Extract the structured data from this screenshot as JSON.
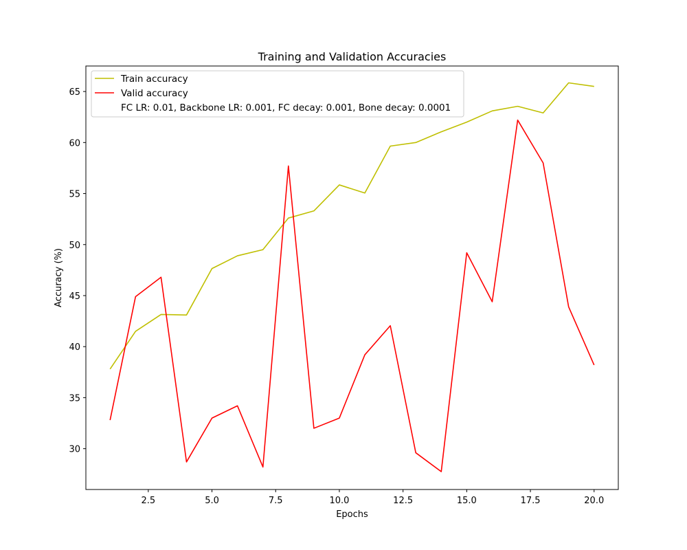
{
  "chart_data": {
    "type": "line",
    "title": "Training and Validation Accuracies",
    "xlabel": "Epochs",
    "ylabel": "Accuracy (%)",
    "xlim": [
      0.05,
      20.95
    ],
    "ylim": [
      26.0,
      67.5
    ],
    "xticks": [
      2.5,
      5.0,
      7.5,
      10.0,
      12.5,
      15.0,
      17.5,
      20.0
    ],
    "xtick_labels": [
      "2.5",
      "5.0",
      "7.5",
      "10.0",
      "12.5",
      "15.0",
      "17.5",
      "20.0"
    ],
    "yticks": [
      30,
      35,
      40,
      45,
      50,
      55,
      60,
      65
    ],
    "ytick_labels": [
      "30",
      "35",
      "40",
      "45",
      "50",
      "55",
      "60",
      "65"
    ],
    "grid": false,
    "legend_position": "top-left",
    "x": [
      1,
      2,
      3,
      4,
      5,
      6,
      7,
      8,
      9,
      10,
      11,
      12,
      13,
      14,
      15,
      16,
      17,
      18,
      19,
      20
    ],
    "series": [
      {
        "name": "Train accuracy",
        "color": "#bfbf00",
        "values": [
          37.8,
          41.5,
          43.15,
          43.1,
          47.65,
          48.9,
          49.5,
          52.6,
          53.3,
          55.85,
          55.05,
          59.65,
          60.0,
          61.05,
          62.0,
          63.1,
          63.55,
          62.9,
          65.85,
          65.5
        ]
      },
      {
        "name": "Valid accuracy",
        "color": "#ff0000",
        "values": [
          32.8,
          44.9,
          46.8,
          28.7,
          33.0,
          34.2,
          28.2,
          57.7,
          32.0,
          33.0,
          39.2,
          42.05,
          29.6,
          27.75,
          49.2,
          44.4,
          62.2,
          58.0,
          43.9,
          38.2
        ]
      }
    ],
    "legend_note": "FC LR: 0.01, Backbone LR: 0.001, FC decay: 0.001, Bone decay: 0.0001"
  }
}
